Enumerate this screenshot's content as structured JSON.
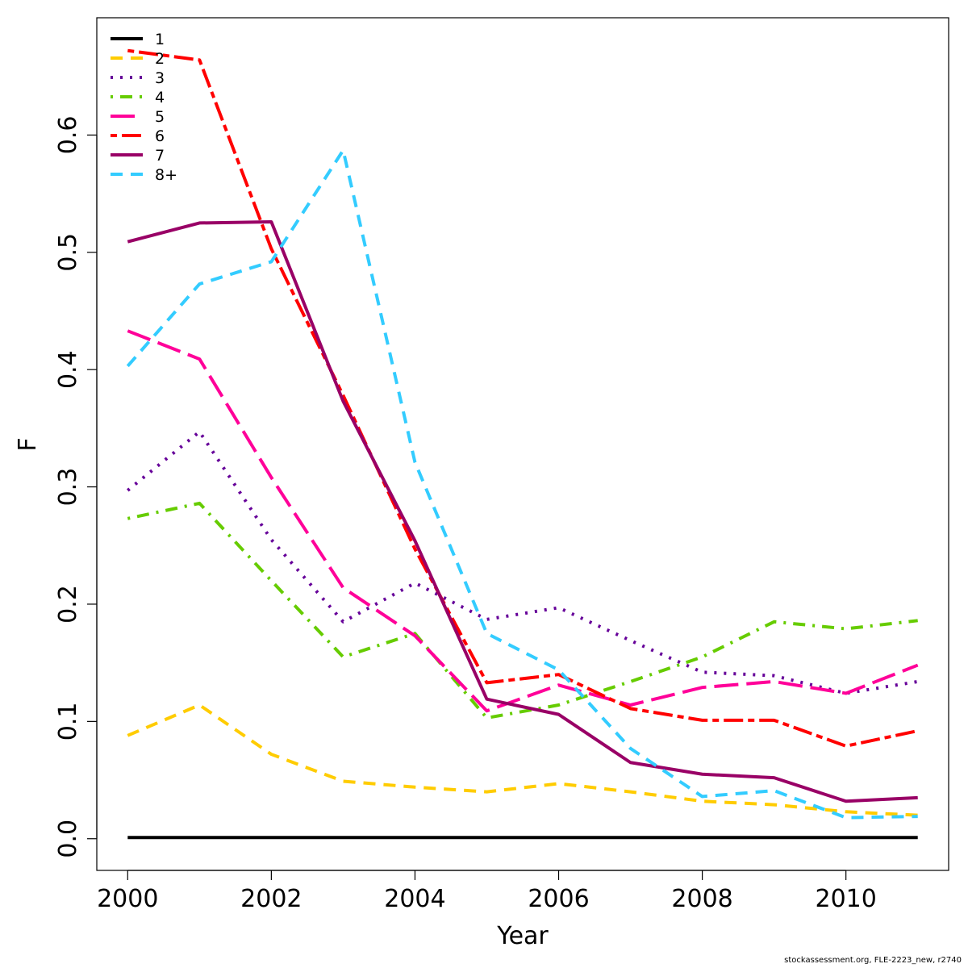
{
  "chart_data": {
    "type": "line",
    "xlabel": "Year",
    "ylabel": "F",
    "xlim": [
      1999.57,
      2011.43
    ],
    "ylim": [
      -0.027,
      0.7
    ],
    "x_ticks": [
      2000,
      2002,
      2004,
      2006,
      2008,
      2010
    ],
    "y_ticks": [
      0.0,
      0.1,
      0.2,
      0.3,
      0.4,
      0.5,
      0.6
    ],
    "y_tick_labels": [
      "0.0",
      "0.1",
      "0.2",
      "0.3",
      "0.4",
      "0.5",
      "0.6"
    ],
    "grid": false,
    "legend_position": "top-left",
    "x": [
      2000,
      2001,
      2002,
      2003,
      2004,
      2005,
      2006,
      2007,
      2008,
      2009,
      2010,
      2011
    ],
    "series": [
      {
        "name": "1",
        "color": "#000000",
        "dash": "solid",
        "values": [
          0.001,
          0.001,
          0.001,
          0.001,
          0.001,
          0.001,
          0.001,
          0.001,
          0.001,
          0.001,
          0.001,
          0.001
        ]
      },
      {
        "name": "2",
        "color": "#FFCC00",
        "dash": "dashed",
        "values": [
          0.088,
          0.114,
          0.072,
          0.049,
          0.044,
          0.04,
          0.047,
          0.04,
          0.032,
          0.029,
          0.023,
          0.02
        ]
      },
      {
        "name": "3",
        "color": "#660099",
        "dash": "dotted",
        "values": [
          0.297,
          0.347,
          0.255,
          0.185,
          0.218,
          0.187,
          0.197,
          0.169,
          0.142,
          0.139,
          0.124,
          0.134
        ]
      },
      {
        "name": "4",
        "color": "#66CC00",
        "dash": "dotdash",
        "values": [
          0.273,
          0.286,
          0.22,
          0.155,
          0.175,
          0.103,
          0.114,
          0.134,
          0.155,
          0.185,
          0.179,
          0.186
        ]
      },
      {
        "name": "5",
        "color": "#FF0099",
        "dash": "longdash",
        "values": [
          0.433,
          0.409,
          0.308,
          0.214,
          0.173,
          0.109,
          0.131,
          0.114,
          0.129,
          0.134,
          0.124,
          0.148
        ]
      },
      {
        "name": "6",
        "color": "#FF0000",
        "dash": "twodash",
        "values": [
          0.672,
          0.664,
          0.503,
          0.378,
          0.247,
          0.133,
          0.14,
          0.111,
          0.101,
          0.101,
          0.079,
          0.092
        ]
      },
      {
        "name": "7",
        "color": "#990066",
        "dash": "solid",
        "values": [
          0.509,
          0.525,
          0.526,
          0.373,
          0.254,
          0.119,
          0.106,
          0.065,
          0.055,
          0.052,
          0.032,
          0.035
        ]
      },
      {
        "name": "8+",
        "color": "#33CCFF",
        "dash": "dashed",
        "values": [
          0.403,
          0.473,
          0.492,
          0.587,
          0.321,
          0.175,
          0.144,
          0.077,
          0.036,
          0.041,
          0.018,
          0.019
        ]
      }
    ]
  },
  "footer": {
    "credit": "stockassessment.org, FLE-2223_new, r2740"
  }
}
